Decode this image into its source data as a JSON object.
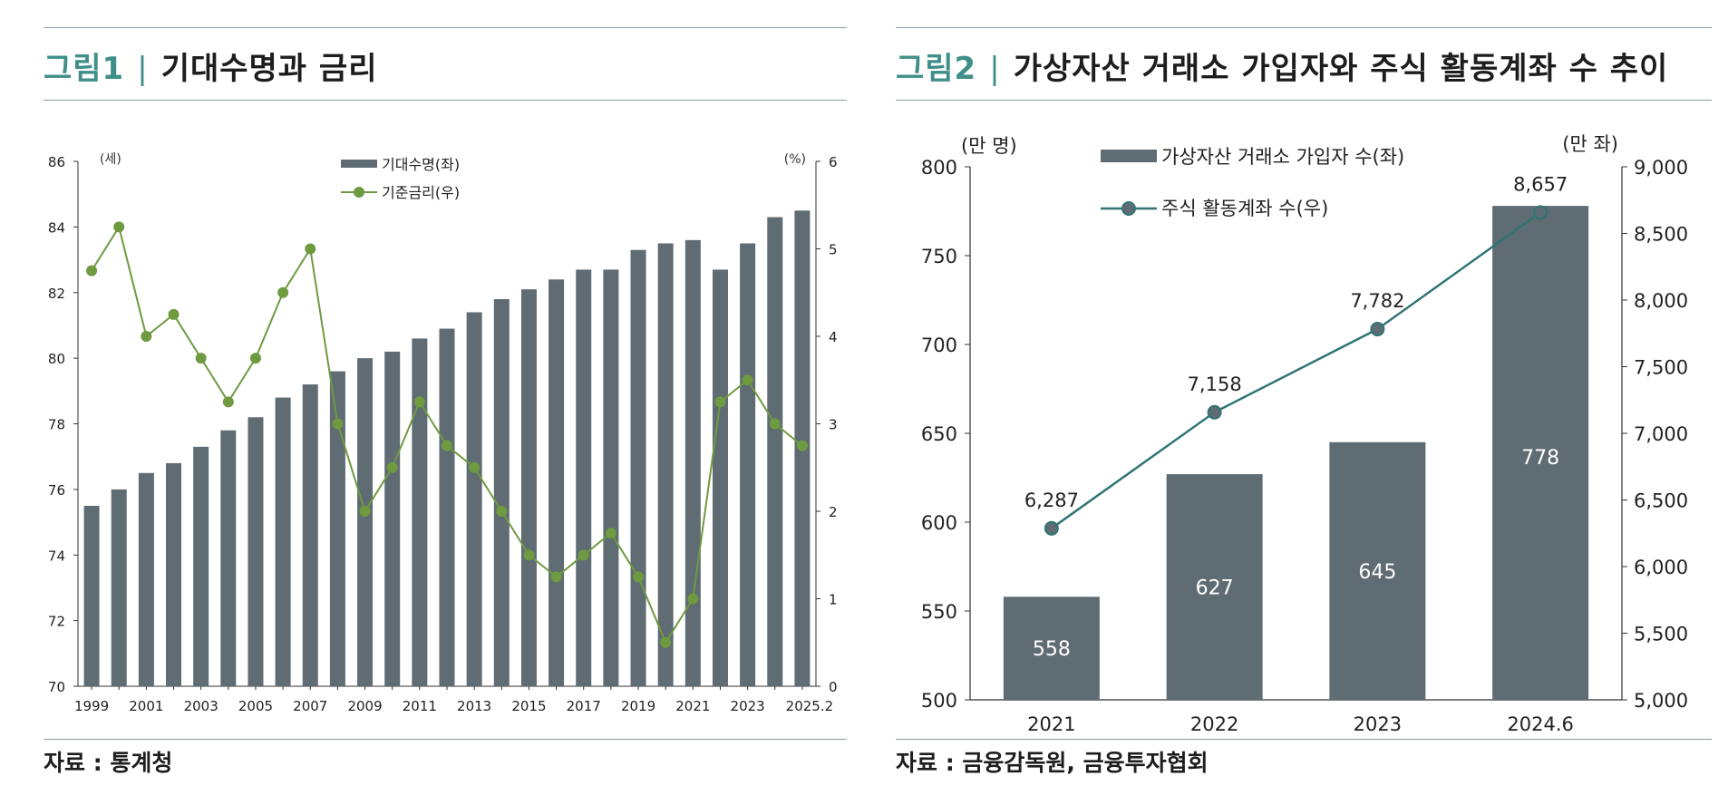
{
  "colors": {
    "bar": "#5f6c73",
    "line1": "#6e9a40",
    "line2": "#2e7574",
    "accent": "#3f8f88"
  },
  "fig1": {
    "number": "그림1",
    "separator": "|",
    "title": "기대수명과 금리",
    "source": "자료 : 통계청"
  },
  "fig2": {
    "number": "그림2",
    "separator": "|",
    "title": "가상자산 거래소 가입자와 주식 활동계좌 수 추이",
    "source": "자료 : 금융감독원, 금융투자협회"
  },
  "chart_data": [
    {
      "type": "bar",
      "combo": "bar+line",
      "categories": [
        "1999",
        "2000",
        "2001",
        "2002",
        "2003",
        "2004",
        "2005",
        "2006",
        "2007",
        "2008",
        "2009",
        "2010",
        "2011",
        "2012",
        "2013",
        "2014",
        "2015",
        "2016",
        "2017",
        "2018",
        "2019",
        "2020",
        "2021",
        "2022",
        "2023",
        "2024",
        "2025.2"
      ],
      "x_tick_labels": [
        "1999",
        "2001",
        "2003",
        "2005",
        "2007",
        "2009",
        "2011",
        "2013",
        "2015",
        "2017",
        "2019",
        "2021",
        "2023",
        "2025.2"
      ],
      "series": [
        {
          "name": "기대수명(좌)",
          "type": "bar",
          "axis": "left",
          "values": [
            75.5,
            76.0,
            76.5,
            76.8,
            77.3,
            77.8,
            78.2,
            78.8,
            79.2,
            79.6,
            80.0,
            80.2,
            80.6,
            80.9,
            81.4,
            81.8,
            82.1,
            82.4,
            82.7,
            82.7,
            83.3,
            83.5,
            83.6,
            82.7,
            83.5,
            84.3,
            84.5
          ]
        },
        {
          "name": "기준금리(우)",
          "type": "line",
          "axis": "right",
          "values": [
            4.75,
            5.25,
            4.0,
            4.25,
            3.75,
            3.25,
            3.75,
            4.5,
            5.0,
            3.0,
            2.0,
            2.5,
            3.25,
            2.75,
            2.5,
            2.0,
            1.5,
            1.25,
            1.5,
            1.75,
            1.25,
            0.5,
            1.0,
            3.25,
            3.5,
            3.0,
            2.75
          ]
        }
      ],
      "y_left": {
        "unit": "(세)",
        "min": 70,
        "max": 86,
        "ticks": [
          70,
          72,
          74,
          76,
          78,
          80,
          82,
          84,
          86
        ]
      },
      "y_right": {
        "unit": "(%)",
        "min": 0,
        "max": 6,
        "ticks": [
          0,
          1,
          2,
          3,
          4,
          5,
          6
        ]
      },
      "legend": "top-center",
      "grid": false
    },
    {
      "type": "bar",
      "combo": "bar+line",
      "categories": [
        "2021",
        "2022",
        "2023",
        "2024.6"
      ],
      "series": [
        {
          "name": "가상자산 거래소 가입자 수(좌)",
          "type": "bar",
          "axis": "left",
          "values": [
            558,
            627,
            645,
            778
          ],
          "labels": [
            "558",
            "627",
            "645",
            "778"
          ]
        },
        {
          "name": "주식 활동계좌 수(우)",
          "type": "line",
          "axis": "right",
          "values": [
            6287,
            7158,
            7782,
            8657
          ],
          "labels": [
            "6,287",
            "7,158",
            "7,782",
            "8,657"
          ]
        }
      ],
      "y_left": {
        "unit": "(만 명)",
        "min": 500,
        "max": 800,
        "ticks": [
          500,
          550,
          600,
          650,
          700,
          750,
          800
        ]
      },
      "y_right": {
        "unit": "(만 좌)",
        "min": 5000,
        "max": 9000,
        "ticks": [
          "5,000",
          "5,500",
          "6,000",
          "6,500",
          "7,000",
          "7,500",
          "8,000",
          "8,500",
          "9,000"
        ]
      },
      "legend": "top-left",
      "grid": false
    }
  ]
}
